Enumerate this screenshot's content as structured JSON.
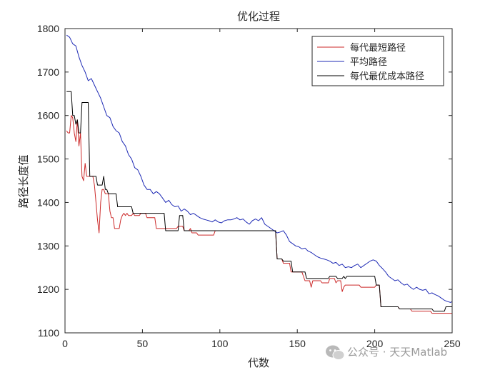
{
  "chart_data": {
    "type": "line",
    "title": "优化过程",
    "xlabel": "代数",
    "ylabel": "路径长度值",
    "xlim": [
      0,
      250
    ],
    "ylim": [
      1100,
      1800
    ],
    "xticks": [
      0,
      50,
      100,
      150,
      200,
      250
    ],
    "yticks": [
      1100,
      1200,
      1300,
      1400,
      1500,
      1600,
      1700,
      1800
    ],
    "grid": false,
    "legend_position": "top-right",
    "series": [
      {
        "name": "每代最短路径",
        "color": "#cc2a2a",
        "points": [
          [
            1,
            1565
          ],
          [
            2,
            1560
          ],
          [
            3,
            1560
          ],
          [
            4,
            1600
          ],
          [
            5,
            1595
          ],
          [
            6,
            1560
          ],
          [
            7,
            1540
          ],
          [
            8,
            1590
          ],
          [
            9,
            1530
          ],
          [
            10,
            1560
          ],
          [
            11,
            1460
          ],
          [
            12,
            1450
          ],
          [
            13,
            1490
          ],
          [
            14,
            1460
          ],
          [
            15,
            1460
          ],
          [
            18,
            1460
          ],
          [
            19,
            1440
          ],
          [
            20,
            1400
          ],
          [
            21,
            1360
          ],
          [
            22,
            1330
          ],
          [
            23,
            1400
          ],
          [
            24,
            1430
          ],
          [
            25,
            1430
          ],
          [
            26,
            1420
          ],
          [
            28,
            1420
          ],
          [
            29,
            1380
          ],
          [
            30,
            1365
          ],
          [
            31,
            1365
          ],
          [
            32,
            1340
          ],
          [
            33,
            1340
          ],
          [
            35,
            1340
          ],
          [
            36,
            1360
          ],
          [
            37,
            1370
          ],
          [
            38,
            1375
          ],
          [
            39,
            1370
          ],
          [
            40,
            1375
          ],
          [
            41,
            1370
          ],
          [
            43,
            1370
          ],
          [
            44,
            1375
          ],
          [
            45,
            1370
          ],
          [
            48,
            1370
          ],
          [
            49,
            1375
          ],
          [
            52,
            1375
          ],
          [
            53,
            1365
          ],
          [
            58,
            1365
          ],
          [
            59,
            1340
          ],
          [
            72,
            1340
          ],
          [
            73,
            1345
          ],
          [
            76,
            1345
          ],
          [
            77,
            1335
          ],
          [
            80,
            1335
          ],
          [
            81,
            1340
          ],
          [
            82,
            1330
          ],
          [
            85,
            1330
          ],
          [
            86,
            1325
          ],
          [
            96,
            1325
          ],
          [
            97,
            1335
          ],
          [
            136,
            1335
          ],
          [
            137,
            1270
          ],
          [
            140,
            1270
          ],
          [
            141,
            1260
          ],
          [
            145,
            1260
          ],
          [
            146,
            1240
          ],
          [
            153,
            1240
          ],
          [
            155,
            1220
          ],
          [
            158,
            1220
          ],
          [
            159,
            1205
          ],
          [
            160,
            1220
          ],
          [
            165,
            1220
          ],
          [
            166,
            1215
          ],
          [
            170,
            1215
          ],
          [
            171,
            1225
          ],
          [
            174,
            1225
          ],
          [
            175,
            1215
          ],
          [
            176,
            1220
          ],
          [
            178,
            1220
          ],
          [
            179,
            1195
          ],
          [
            180,
            1205
          ],
          [
            181,
            1210
          ],
          [
            190,
            1210
          ],
          [
            191,
            1205
          ],
          [
            200,
            1205
          ],
          [
            201,
            1210
          ],
          [
            203,
            1210
          ],
          [
            204,
            1160
          ],
          [
            215,
            1160
          ],
          [
            216,
            1155
          ],
          [
            223,
            1155
          ],
          [
            224,
            1150
          ],
          [
            236,
            1150
          ],
          [
            237,
            1145
          ],
          [
            250,
            1145
          ]
        ]
      },
      {
        "name": "平均路径",
        "color": "#1f2bb5",
        "points": [
          [
            1,
            1785
          ],
          [
            3,
            1780
          ],
          [
            5,
            1765
          ],
          [
            7,
            1760
          ],
          [
            9,
            1735
          ],
          [
            11,
            1715
          ],
          [
            13,
            1700
          ],
          [
            15,
            1680
          ],
          [
            17,
            1685
          ],
          [
            19,
            1670
          ],
          [
            21,
            1655
          ],
          [
            23,
            1640
          ],
          [
            25,
            1620
          ],
          [
            27,
            1600
          ],
          [
            29,
            1595
          ],
          [
            31,
            1575
          ],
          [
            33,
            1565
          ],
          [
            35,
            1560
          ],
          [
            37,
            1540
          ],
          [
            39,
            1530
          ],
          [
            41,
            1510
          ],
          [
            43,
            1500
          ],
          [
            45,
            1480
          ],
          [
            47,
            1475
          ],
          [
            49,
            1460
          ],
          [
            51,
            1440
          ],
          [
            53,
            1430
          ],
          [
            55,
            1430
          ],
          [
            57,
            1420
          ],
          [
            59,
            1425
          ],
          [
            61,
            1420
          ],
          [
            63,
            1410
          ],
          [
            65,
            1400
          ],
          [
            67,
            1405
          ],
          [
            69,
            1395
          ],
          [
            71,
            1390
          ],
          [
            73,
            1392
          ],
          [
            75,
            1380
          ],
          [
            77,
            1385
          ],
          [
            79,
            1380
          ],
          [
            81,
            1372
          ],
          [
            83,
            1375
          ],
          [
            85,
            1370
          ],
          [
            87,
            1365
          ],
          [
            89,
            1362
          ],
          [
            91,
            1360
          ],
          [
            93,
            1358
          ],
          [
            95,
            1355
          ],
          [
            97,
            1360
          ],
          [
            99,
            1355
          ],
          [
            101,
            1353
          ],
          [
            103,
            1358
          ],
          [
            105,
            1360
          ],
          [
            107,
            1360
          ],
          [
            109,
            1362
          ],
          [
            111,
            1365
          ],
          [
            113,
            1360
          ],
          [
            115,
            1362
          ],
          [
            117,
            1355
          ],
          [
            119,
            1350
          ],
          [
            121,
            1358
          ],
          [
            123,
            1362
          ],
          [
            125,
            1358
          ],
          [
            127,
            1365
          ],
          [
            129,
            1350
          ],
          [
            131,
            1345
          ],
          [
            133,
            1340
          ],
          [
            135,
            1335
          ],
          [
            137,
            1330
          ],
          [
            139,
            1332
          ],
          [
            141,
            1335
          ],
          [
            143,
            1325
          ],
          [
            145,
            1310
          ],
          [
            147,
            1305
          ],
          [
            149,
            1300
          ],
          [
            151,
            1298
          ],
          [
            153,
            1293
          ],
          [
            155,
            1295
          ],
          [
            157,
            1288
          ],
          [
            159,
            1285
          ],
          [
            161,
            1280
          ],
          [
            163,
            1275
          ],
          [
            165,
            1272
          ],
          [
            167,
            1270
          ],
          [
            169,
            1268
          ],
          [
            171,
            1265
          ],
          [
            173,
            1260
          ],
          [
            175,
            1262
          ],
          [
            177,
            1255
          ],
          [
            179,
            1258
          ],
          [
            181,
            1250
          ],
          [
            183,
            1252
          ],
          [
            185,
            1250
          ],
          [
            187,
            1255
          ],
          [
            189,
            1258
          ],
          [
            191,
            1250
          ],
          [
            193,
            1255
          ],
          [
            195,
            1260
          ],
          [
            197,
            1265
          ],
          [
            199,
            1268
          ],
          [
            201,
            1265
          ],
          [
            203,
            1255
          ],
          [
            205,
            1248
          ],
          [
            207,
            1240
          ],
          [
            209,
            1230
          ],
          [
            211,
            1225
          ],
          [
            213,
            1220
          ],
          [
            215,
            1222
          ],
          [
            217,
            1215
          ],
          [
            219,
            1210
          ],
          [
            221,
            1212
          ],
          [
            223,
            1205
          ],
          [
            225,
            1200
          ],
          [
            227,
            1205
          ],
          [
            229,
            1200
          ],
          [
            231,
            1198
          ],
          [
            233,
            1200
          ],
          [
            235,
            1190
          ],
          [
            237,
            1192
          ],
          [
            239,
            1188
          ],
          [
            241,
            1185
          ],
          [
            243,
            1180
          ],
          [
            245,
            1175
          ],
          [
            247,
            1172
          ],
          [
            249,
            1170
          ],
          [
            250,
            1172
          ]
        ]
      },
      {
        "name": "每代最优成本路径",
        "color": "#000000",
        "points": [
          [
            1,
            1655
          ],
          [
            4,
            1655
          ],
          [
            5,
            1600
          ],
          [
            6,
            1600
          ],
          [
            7,
            1580
          ],
          [
            8,
            1590
          ],
          [
            9,
            1560
          ],
          [
            10,
            1560
          ],
          [
            11,
            1630
          ],
          [
            15,
            1630
          ],
          [
            16,
            1460
          ],
          [
            20,
            1460
          ],
          [
            21,
            1440
          ],
          [
            24,
            1440
          ],
          [
            25,
            1460
          ],
          [
            26,
            1430
          ],
          [
            27,
            1430
          ],
          [
            28,
            1420
          ],
          [
            33,
            1420
          ],
          [
            34,
            1390
          ],
          [
            43,
            1390
          ],
          [
            44,
            1375
          ],
          [
            64,
            1375
          ],
          [
            65,
            1335
          ],
          [
            73,
            1335
          ],
          [
            74,
            1370
          ],
          [
            76,
            1370
          ],
          [
            77,
            1335
          ],
          [
            136,
            1335
          ],
          [
            137,
            1270
          ],
          [
            140,
            1270
          ],
          [
            141,
            1265
          ],
          [
            146,
            1265
          ],
          [
            147,
            1240
          ],
          [
            155,
            1240
          ],
          [
            156,
            1225
          ],
          [
            170,
            1225
          ],
          [
            171,
            1230
          ],
          [
            175,
            1230
          ],
          [
            176,
            1225
          ],
          [
            179,
            1225
          ],
          [
            180,
            1230
          ],
          [
            181,
            1225
          ],
          [
            182,
            1230
          ],
          [
            200,
            1230
          ],
          [
            201,
            1210
          ],
          [
            203,
            1210
          ],
          [
            204,
            1160
          ],
          [
            215,
            1160
          ],
          [
            216,
            1155
          ],
          [
            237,
            1155
          ],
          [
            238,
            1150
          ],
          [
            245,
            1150
          ],
          [
            246,
            1160
          ],
          [
            250,
            1160
          ]
        ]
      }
    ]
  },
  "watermark": {
    "text": "公众号 · 天天Matlab",
    "icon": "wechat-icon"
  }
}
